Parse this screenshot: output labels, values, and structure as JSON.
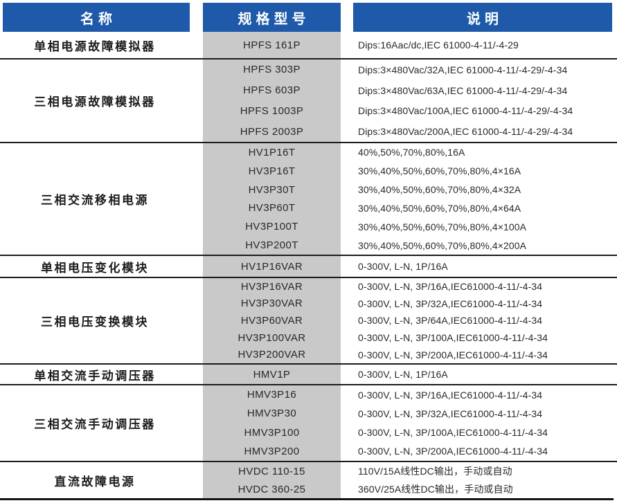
{
  "header": {
    "columns": [
      "名称",
      "规格型号",
      "说明"
    ]
  },
  "colors": {
    "header_bg": "#1E5AA9",
    "header_text": "#FFFFFF",
    "model_column_bg": "#C9C9C9",
    "divider": "#1C1A1B"
  },
  "groups": [
    {
      "name": "单相电源故障模拟器",
      "rows": [
        {
          "model": "HPFS 161P",
          "desc": "Dips:16Aac/dc,IEC 61000-4-11/-4-29"
        }
      ]
    },
    {
      "name": "三相电源故障模拟器",
      "rows": [
        {
          "model": "HPFS 303P",
          "desc": "Dips:3×480Vac/32A,IEC 61000-4-11/-4-29/-4-34"
        },
        {
          "model": "HPFS 603P",
          "desc": "Dips:3×480Vac/63A,IEC 61000-4-11/-4-29/-4-34"
        },
        {
          "model": "HPFS 1003P",
          "desc": "Dips:3×480Vac/100A,IEC 61000-4-11/-4-29/-4-34"
        },
        {
          "model": "HPFS 2003P",
          "desc": "Dips:3×480Vac/200A,IEC 61000-4-11/-4-29/-4-34"
        }
      ]
    },
    {
      "name": "三相交流移相电源",
      "rows": [
        {
          "model": "HV1P16T",
          "desc": "40%,50%,70%,80%,16A"
        },
        {
          "model": "HV3P16T",
          "desc": "30%,40%,50%,60%,70%,80%,4×16A"
        },
        {
          "model": "HV3P30T",
          "desc": "30%,40%,50%,60%,70%,80%,4×32A"
        },
        {
          "model": "HV3P60T",
          "desc": "30%,40%,50%,60%,70%,80%,4×64A"
        },
        {
          "model": "HV3P100T",
          "desc": "30%,40%,50%,60%,70%,80%,4×100A"
        },
        {
          "model": "HV3P200T",
          "desc": "30%,40%,50%,60%,70%,80%,4×200A"
        }
      ]
    },
    {
      "name": "单相电压变化模块",
      "rows": [
        {
          "model": "HV1P16VAR",
          "desc": "0-300V, L-N, 1P/16A"
        }
      ]
    },
    {
      "name": "三相电压变换模块",
      "rows": [
        {
          "model": "HV3P16VAR",
          "desc": "0-300V, L-N, 3P/16A,IEC61000-4-11/-4-34"
        },
        {
          "model": "HV3P30VAR",
          "desc": "0-300V, L-N, 3P/32A,IEC61000-4-11/-4-34"
        },
        {
          "model": "HV3P60VAR",
          "desc": "0-300V, L-N, 3P/64A,IEC61000-4-11/-4-34"
        },
        {
          "model": "HV3P100VAR",
          "desc": "0-300V, L-N, 3P/100A,IEC61000-4-11/-4-34"
        },
        {
          "model": "HV3P200VAR",
          "desc": "0-300V, L-N, 3P/200A,IEC61000-4-11/-4-34"
        }
      ]
    },
    {
      "name": "单相交流手动调压器",
      "rows": [
        {
          "model": "HMV1P",
          "desc": "0-300V, L-N, 1P/16A"
        }
      ]
    },
    {
      "name": "三相交流手动调压器",
      "rows": [
        {
          "model": "HMV3P16",
          "desc": "0-300V, L-N, 3P/16A,IEC61000-4-11/-4-34"
        },
        {
          "model": "HMV3P30",
          "desc": "0-300V, L-N, 3P/32A,IEC61000-4-11/-4-34"
        },
        {
          "model": "HMV3P100",
          "desc": "0-300V, L-N, 3P/100A,IEC61000-4-11/-4-34"
        },
        {
          "model": "HMV3P200",
          "desc": "0-300V, L-N, 3P/200A,IEC61000-4-11/-4-34"
        }
      ]
    },
    {
      "name": "直流故障电源",
      "rows": [
        {
          "model": "HVDC 110-15",
          "desc": "110V/15A线性DC输出，手动或自动"
        },
        {
          "model": "HVDC 360-25",
          "desc": "360V/25A线性DC输出，手动或自动"
        }
      ]
    }
  ]
}
